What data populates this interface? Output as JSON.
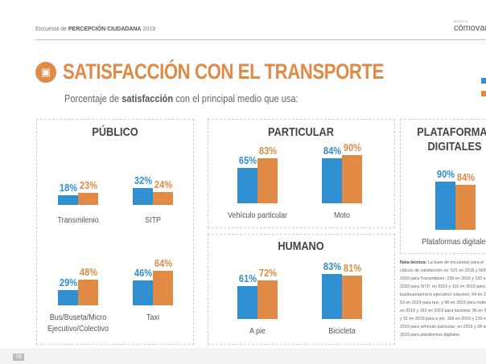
{
  "header": {
    "prefix": "Encuesta de",
    "bold": "PERCEPCIÓN CIUDADANA",
    "year": "2019"
  },
  "logo": {
    "small": "BOGOTÁ",
    "name": "cómovamos"
  },
  "title": "SATISFACCIÓN CON EL TRANSPORTE",
  "subtitle": {
    "pre": "Porcentaje de",
    "bold": "satisfacción",
    "post": "con el principal medio que usa:"
  },
  "panels": {
    "publico": "PÚBLICO",
    "particular": "PARTICULAR",
    "humano": "HUMANO",
    "plataformas": "PLATAFORMAS DIGITALES"
  },
  "colors": {
    "series1": "#2f8fd0",
    "series2": "#e08a45"
  },
  "chart_data": {
    "type": "bar",
    "categories": [
      "Transmilenio",
      "SITP",
      "Bus/Buseta/Micro Ejecutivo/Colectivo",
      "Taxi",
      "Vehículo particular",
      "Moto",
      "A pie",
      "Bicicleta",
      "Plataformas digitales"
    ],
    "series": [
      {
        "values": [
          18,
          32,
          29,
          46,
          65,
          84,
          61,
          83,
          90
        ]
      },
      {
        "values": [
          23,
          24,
          48,
          64,
          83,
          90,
          72,
          81,
          84
        ]
      }
    ],
    "value_suffix": "%"
  },
  "note": {
    "bold": "Nota técnica:",
    "text": "La base de encuestas para el cálculo de satisfacción es: 521 en 2016 y 565 en 2019 para Transmilenio; 236 en 2016 y 193 en 2019 para SITP; en 2016 y 116 en 2019 para bus/buseta/micro ejecutivo/ colectivo, 64 en 2016 y 53 en 2019 para taxi, y 98 en 2019 para moto, 126 en 2016 y 162 en 2019 para bicicleta; 96 en 2016 y 91 en 2019 para a pie; 166 en 2016 y 215 en 2019 para vehículo particular; en 2016 y 28 en 2019 para plataformas digitales."
  },
  "page": "78"
}
